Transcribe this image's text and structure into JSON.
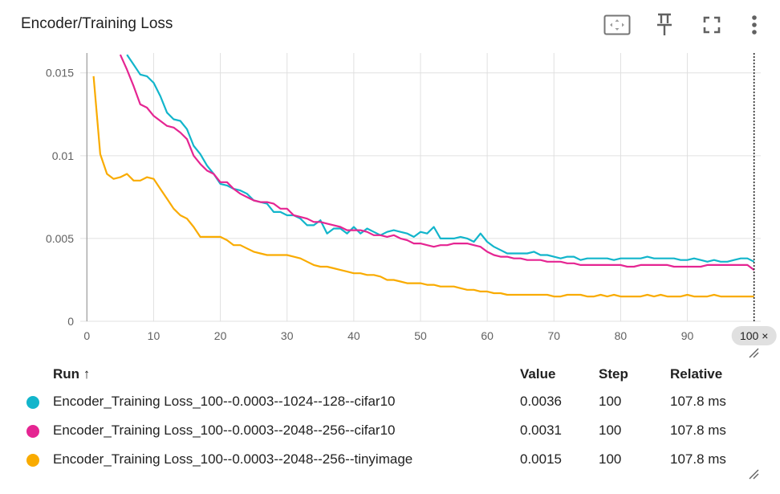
{
  "header": {
    "title": "Encoder/Training Loss",
    "icons": [
      "fit-to-domain-icon",
      "pin-icon",
      "fullscreen-icon",
      "more-vert-icon"
    ]
  },
  "colors": {
    "cifar10_1024": "#12b5cb",
    "cifar10_2048": "#e52592",
    "tinyimage": "#f9ab00",
    "grid": "#e0e0e0",
    "axis_text": "#616161"
  },
  "chart_data": {
    "type": "line",
    "title": "",
    "xlabel": "",
    "ylabel": "",
    "xlim": [
      -1,
      101
    ],
    "ylim": [
      0,
      0.0162
    ],
    "x_ticks": [
      0,
      10,
      20,
      30,
      40,
      50,
      60,
      70,
      80,
      90,
      100
    ],
    "y_ticks": [
      0,
      0.005,
      0.01,
      0.015
    ],
    "y_tick_labels": [
      "0",
      "0.005",
      "0.01",
      "0.015"
    ],
    "grid": true,
    "hover_step_label": "100 ×",
    "hover_step": 100,
    "series": [
      {
        "name": "Encoder_Training Loss_100--0.0003--1024--128--cifar10",
        "color": "#12b5cb",
        "x": [
          6,
          7,
          8,
          9,
          10,
          11,
          12,
          13,
          14,
          15,
          16,
          17,
          18,
          19,
          20,
          21,
          22,
          23,
          24,
          25,
          26,
          27,
          28,
          29,
          30,
          31,
          32,
          33,
          34,
          35,
          36,
          37,
          38,
          39,
          40,
          41,
          42,
          43,
          44,
          45,
          46,
          47,
          48,
          49,
          50,
          51,
          52,
          53,
          54,
          55,
          56,
          57,
          58,
          59,
          60,
          61,
          62,
          63,
          64,
          65,
          66,
          67,
          68,
          69,
          70,
          71,
          72,
          73,
          74,
          75,
          76,
          77,
          78,
          79,
          80,
          81,
          82,
          83,
          84,
          85,
          86,
          87,
          88,
          89,
          90,
          91,
          92,
          93,
          94,
          95,
          96,
          97,
          98,
          99,
          100
        ],
        "y": [
          0.0161,
          0.0155,
          0.0149,
          0.0148,
          0.0144,
          0.0136,
          0.0126,
          0.0122,
          0.0121,
          0.0116,
          0.0106,
          0.0101,
          0.0094,
          0.0089,
          0.0083,
          0.0082,
          0.008,
          0.0079,
          0.0077,
          0.0073,
          0.0072,
          0.0071,
          0.0066,
          0.0066,
          0.0064,
          0.0064,
          0.0062,
          0.0058,
          0.0058,
          0.0061,
          0.0053,
          0.0056,
          0.0056,
          0.0053,
          0.0057,
          0.0053,
          0.0056,
          0.0054,
          0.0052,
          0.0054,
          0.0055,
          0.0054,
          0.0053,
          0.0051,
          0.0054,
          0.0053,
          0.0057,
          0.005,
          0.005,
          0.005,
          0.0051,
          0.005,
          0.0048,
          0.0053,
          0.0048,
          0.0045,
          0.0043,
          0.0041,
          0.0041,
          0.0041,
          0.0041,
          0.0042,
          0.004,
          0.004,
          0.0039,
          0.0038,
          0.0039,
          0.0039,
          0.0037,
          0.0038,
          0.0038,
          0.0038,
          0.0038,
          0.0037,
          0.0038,
          0.0038,
          0.0038,
          0.0038,
          0.0039,
          0.0038,
          0.0038,
          0.0038,
          0.0038,
          0.0037,
          0.0037,
          0.0038,
          0.0037,
          0.0036,
          0.0037,
          0.0036,
          0.0036,
          0.0037,
          0.0038,
          0.0038,
          0.0036
        ]
      },
      {
        "name": "Encoder_Training Loss_100--0.0003--2048--256--cifar10",
        "color": "#e52592",
        "x": [
          5,
          6,
          7,
          8,
          9,
          10,
          11,
          12,
          13,
          14,
          15,
          16,
          17,
          18,
          19,
          20,
          21,
          22,
          23,
          24,
          25,
          26,
          27,
          28,
          29,
          30,
          31,
          32,
          33,
          34,
          35,
          36,
          37,
          38,
          39,
          40,
          41,
          42,
          43,
          44,
          45,
          46,
          47,
          48,
          49,
          50,
          51,
          52,
          53,
          54,
          55,
          56,
          57,
          58,
          59,
          60,
          61,
          62,
          63,
          64,
          65,
          66,
          67,
          68,
          69,
          70,
          71,
          72,
          73,
          74,
          75,
          76,
          77,
          78,
          79,
          80,
          81,
          82,
          83,
          84,
          85,
          86,
          87,
          88,
          89,
          90,
          91,
          92,
          93,
          94,
          95,
          96,
          97,
          98,
          99,
          100
        ],
        "y": [
          0.0161,
          0.0152,
          0.0142,
          0.0131,
          0.0129,
          0.0124,
          0.0121,
          0.0118,
          0.0117,
          0.0114,
          0.011,
          0.01,
          0.0095,
          0.0091,
          0.0089,
          0.0084,
          0.0084,
          0.008,
          0.0077,
          0.0075,
          0.0073,
          0.0072,
          0.0072,
          0.0071,
          0.0068,
          0.0068,
          0.0064,
          0.0063,
          0.0062,
          0.006,
          0.006,
          0.0059,
          0.0058,
          0.0057,
          0.0055,
          0.0055,
          0.0055,
          0.0054,
          0.0052,
          0.0052,
          0.0051,
          0.0052,
          0.005,
          0.0049,
          0.0047,
          0.0047,
          0.0046,
          0.0045,
          0.0046,
          0.0046,
          0.0047,
          0.0047,
          0.0047,
          0.0046,
          0.0045,
          0.0042,
          0.004,
          0.0039,
          0.0039,
          0.0038,
          0.0038,
          0.0037,
          0.0037,
          0.0037,
          0.0036,
          0.0036,
          0.0036,
          0.0035,
          0.0035,
          0.0034,
          0.0034,
          0.0034,
          0.0034,
          0.0034,
          0.0034,
          0.0034,
          0.0033,
          0.0033,
          0.0034,
          0.0034,
          0.0034,
          0.0034,
          0.0034,
          0.0033,
          0.0033,
          0.0033,
          0.0033,
          0.0033,
          0.0034,
          0.0034,
          0.0034,
          0.0034,
          0.0034,
          0.0034,
          0.0034,
          0.0031
        ]
      },
      {
        "name": "Encoder_Training Loss_100--0.0003--2048--256--tinyimage",
        "color": "#f9ab00",
        "x": [
          1,
          2,
          3,
          4,
          5,
          6,
          7,
          8,
          9,
          10,
          11,
          12,
          13,
          14,
          15,
          16,
          17,
          18,
          19,
          20,
          21,
          22,
          23,
          24,
          25,
          26,
          27,
          28,
          29,
          30,
          31,
          32,
          33,
          34,
          35,
          36,
          37,
          38,
          39,
          40,
          41,
          42,
          43,
          44,
          45,
          46,
          47,
          48,
          49,
          50,
          51,
          52,
          53,
          54,
          55,
          56,
          57,
          58,
          59,
          60,
          61,
          62,
          63,
          64,
          65,
          66,
          67,
          68,
          69,
          70,
          71,
          72,
          73,
          74,
          75,
          76,
          77,
          78,
          79,
          80,
          81,
          82,
          83,
          84,
          85,
          86,
          87,
          88,
          89,
          90,
          91,
          92,
          93,
          94,
          95,
          96,
          97,
          98,
          99,
          100
        ],
        "y": [
          0.0148,
          0.0101,
          0.0089,
          0.0086,
          0.0087,
          0.0089,
          0.0085,
          0.0085,
          0.0087,
          0.0086,
          0.008,
          0.0074,
          0.0068,
          0.0064,
          0.0062,
          0.0057,
          0.0051,
          0.0051,
          0.0051,
          0.0051,
          0.0049,
          0.0046,
          0.0046,
          0.0044,
          0.0042,
          0.0041,
          0.004,
          0.004,
          0.004,
          0.004,
          0.0039,
          0.0038,
          0.0036,
          0.0034,
          0.0033,
          0.0033,
          0.0032,
          0.0031,
          0.003,
          0.0029,
          0.0029,
          0.0028,
          0.0028,
          0.0027,
          0.0025,
          0.0025,
          0.0024,
          0.0023,
          0.0023,
          0.0023,
          0.0022,
          0.0022,
          0.0021,
          0.0021,
          0.0021,
          0.002,
          0.0019,
          0.0019,
          0.0018,
          0.0018,
          0.0017,
          0.0017,
          0.0016,
          0.0016,
          0.0016,
          0.0016,
          0.0016,
          0.0016,
          0.0016,
          0.0015,
          0.0015,
          0.0016,
          0.0016,
          0.0016,
          0.0015,
          0.0015,
          0.0016,
          0.0015,
          0.0016,
          0.0015,
          0.0015,
          0.0015,
          0.0015,
          0.0016,
          0.0015,
          0.0016,
          0.0015,
          0.0015,
          0.0015,
          0.0016,
          0.0015,
          0.0015,
          0.0015,
          0.0016,
          0.0015,
          0.0015,
          0.0015,
          0.0015,
          0.0015,
          0.0015
        ]
      }
    ]
  },
  "table": {
    "headers": {
      "run": "Run ↑",
      "value": "Value",
      "step": "Step",
      "relative": "Relative"
    },
    "rows": [
      {
        "run": "Encoder_Training Loss_100--0.0003--1024--128--cifar10",
        "value": "0.0036",
        "step": "100",
        "relative": "107.8 ms",
        "color": "#12b5cb"
      },
      {
        "run": "Encoder_Training Loss_100--0.0003--2048--256--cifar10",
        "value": "0.0031",
        "step": "100",
        "relative": "107.8 ms",
        "color": "#e52592"
      },
      {
        "run": "Encoder_Training Loss_100--0.0003--2048--256--tinyimage",
        "value": "0.0015",
        "step": "100",
        "relative": "107.8 ms",
        "color": "#f9ab00"
      }
    ]
  }
}
